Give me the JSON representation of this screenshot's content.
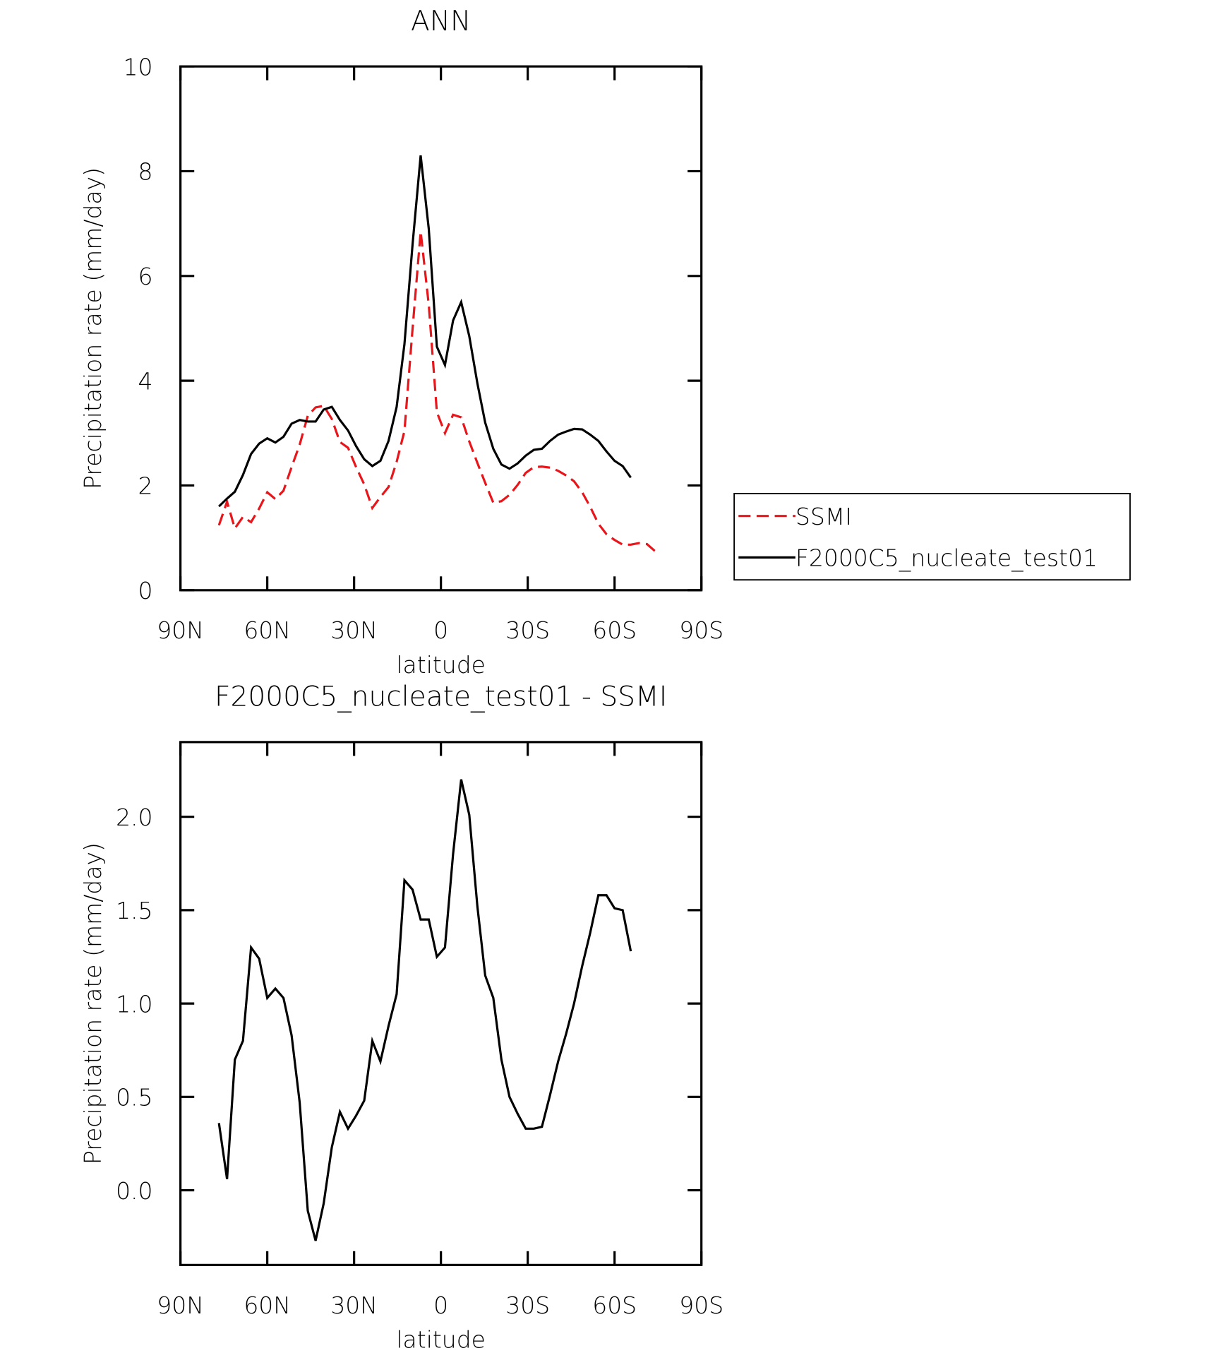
{
  "chart_data": [
    {
      "type": "line",
      "title": "ANN",
      "x_label": "latitude",
      "y_label": "Precipitation rate (mm/day)",
      "x": [
        76.7,
        73.9,
        71.2,
        68.4,
        65.6,
        62.8,
        60.0,
        57.2,
        54.4,
        51.6,
        48.8,
        46.0,
        43.3,
        40.5,
        37.7,
        34.9,
        32.1,
        29.3,
        26.5,
        23.7,
        20.9,
        18.1,
        15.3,
        12.6,
        9.8,
        7.0,
        4.2,
        1.4,
        -1.4,
        -4.2,
        -7.0,
        -9.8,
        -12.6,
        -15.3,
        -18.1,
        -20.9,
        -23.7,
        -26.5,
        -29.3,
        -32.1,
        -34.9,
        -37.7,
        -40.5,
        -43.3,
        -46.0,
        -48.8,
        -51.6,
        -54.4,
        -57.2,
        -60.0,
        -62.8,
        -65.6,
        -68.4,
        -71.2,
        -73.9
      ],
      "series": [
        {
          "name": "SSMI",
          "color": "#e8151a",
          "line_style": "dashed",
          "values": [
            1.24,
            1.69,
            1.18,
            1.4,
            1.3,
            1.56,
            1.87,
            1.74,
            1.9,
            2.35,
            2.78,
            3.33,
            3.49,
            3.52,
            3.27,
            2.83,
            2.72,
            2.35,
            2.02,
            1.57,
            1.78,
            1.97,
            2.45,
            3.04,
            4.99,
            6.85,
            5.45,
            3.4,
            3.0,
            3.35,
            3.3,
            2.84,
            2.43,
            2.05,
            1.67,
            1.7,
            1.82,
            2.01,
            2.24,
            2.35,
            2.36,
            2.34,
            2.28,
            2.19,
            2.08,
            1.87,
            1.59,
            1.27,
            1.07,
            0.96,
            0.87,
            0.87,
            0.9,
            0.88,
            0.75
          ]
        },
        {
          "name": "F2000C5_nucleate_test01",
          "color": "#000000",
          "line_style": "solid",
          "values": [
            1.6,
            1.75,
            1.88,
            2.2,
            2.6,
            2.8,
            2.9,
            2.82,
            2.93,
            3.18,
            3.25,
            3.22,
            3.22,
            3.45,
            3.5,
            3.25,
            3.05,
            2.75,
            2.5,
            2.37,
            2.47,
            2.85,
            3.5,
            4.7,
            6.6,
            8.3,
            6.9,
            4.65,
            4.3,
            5.15,
            5.5,
            4.85,
            3.95,
            3.2,
            2.7,
            2.4,
            2.32,
            2.42,
            2.57,
            2.68,
            2.7,
            2.85,
            2.97,
            3.03,
            3.08,
            3.07,
            2.97,
            2.85,
            2.65,
            2.47,
            2.37,
            2.15,
            null,
            null,
            null
          ]
        }
      ],
      "xlim": [
        90,
        -90
      ],
      "xticks": [
        {
          "value": 90,
          "label": "90N"
        },
        {
          "value": 60,
          "label": "60N"
        },
        {
          "value": 30,
          "label": "30N"
        },
        0,
        {
          "value": -30,
          "label": "30S"
        },
        {
          "value": -60,
          "label": "60S"
        },
        {
          "value": -90,
          "label": "90S"
        }
      ],
      "ylim": [
        0,
        10
      ],
      "yticks": [
        0,
        2,
        4,
        6,
        8,
        10
      ],
      "legend": "right"
    },
    {
      "type": "line",
      "title": "F2000C5_nucleate_test01 - SSMI",
      "x_label": "latitude",
      "y_label": "Precipitation rate (mm/day)",
      "x": [
        76.7,
        73.9,
        71.2,
        68.4,
        65.6,
        62.8,
        60.0,
        57.2,
        54.4,
        51.6,
        48.8,
        46.0,
        43.3,
        40.5,
        37.7,
        34.9,
        32.1,
        29.3,
        26.5,
        23.7,
        20.9,
        18.1,
        15.3,
        12.6,
        9.8,
        7.0,
        4.2,
        1.4,
        -1.4,
        -4.2,
        -7.0,
        -9.8,
        -12.6,
        -15.3,
        -18.1,
        -20.9,
        -23.7,
        -26.5,
        -29.3,
        -32.1,
        -34.9,
        -37.7,
        -40.5,
        -43.3,
        -46.0,
        -48.8,
        -51.6,
        -54.4,
        -57.2,
        -60.0,
        -62.8,
        -65.6
      ],
      "series": [
        {
          "color": "#000000",
          "line_style": "solid",
          "values": [
            0.36,
            0.06,
            0.7,
            0.8,
            1.3,
            1.24,
            1.03,
            1.08,
            1.03,
            0.83,
            0.47,
            -0.11,
            -0.27,
            -0.07,
            0.23,
            0.42,
            0.33,
            0.4,
            0.48,
            0.8,
            0.69,
            0.88,
            1.05,
            1.66,
            1.61,
            1.45,
            1.45,
            1.25,
            1.3,
            1.8,
            2.2,
            2.01,
            1.52,
            1.15,
            1.03,
            0.7,
            0.5,
            0.41,
            0.33,
            0.33,
            0.34,
            0.51,
            0.69,
            0.84,
            1.0,
            1.2,
            1.38,
            1.58,
            1.58,
            1.51,
            1.5,
            1.28
          ]
        }
      ],
      "xlim": [
        90,
        -90
      ],
      "xticks": [
        {
          "value": 90,
          "label": "90N"
        },
        {
          "value": 60,
          "label": "60N"
        },
        {
          "value": 30,
          "label": "30N"
        },
        0,
        {
          "value": -30,
          "label": "30S"
        },
        {
          "value": -60,
          "label": "60S"
        },
        {
          "value": -90,
          "label": "90S"
        }
      ],
      "ylim": [
        -0.4,
        2.4
      ],
      "yticks": [
        {
          "value": 0,
          "label": "0.0"
        },
        0.5,
        {
          "value": 1,
          "label": "1.0"
        },
        1.5,
        {
          "value": 2,
          "label": "2.0"
        }
      ]
    }
  ]
}
